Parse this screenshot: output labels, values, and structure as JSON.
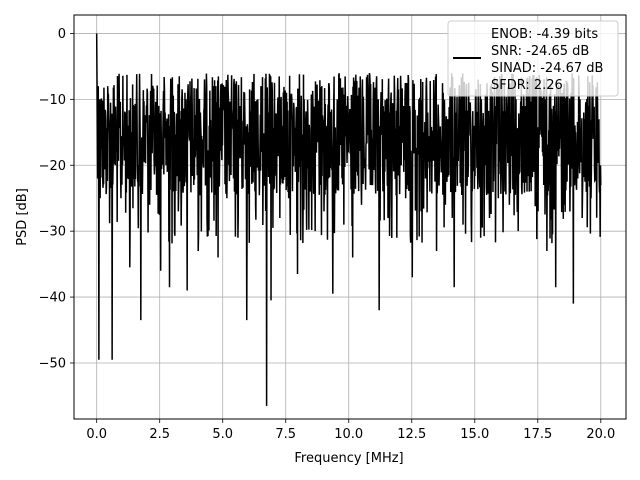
{
  "chart_data": {
    "type": "line",
    "xlabel": "Frequency [MHz]",
    "ylabel": "PSD [dB]",
    "xlim": [
      -0.9,
      21.0
    ],
    "ylim": [
      -58.5,
      2.8
    ],
    "xticks": [
      0.0,
      2.5,
      5.0,
      7.5,
      10.0,
      12.5,
      15.0,
      17.5,
      20.0
    ],
    "xtick_labels": [
      "0.0",
      "2.5",
      "5.0",
      "7.5",
      "10.0",
      "12.5",
      "15.0",
      "17.5",
      "20.0"
    ],
    "yticks": [
      0,
      -10,
      -20,
      -30,
      -40,
      -50
    ],
    "ytick_labels": [
      "0",
      "−10",
      "−20",
      "−30",
      "−40",
      "−50"
    ],
    "grid": true,
    "legend_position": "top-right",
    "series": [
      {
        "color": "#000000",
        "x_start": 0.0,
        "x_end": 20.0,
        "description_points": 1600,
        "values": [
          0,
          -7,
          -15,
          -22,
          -12,
          -8,
          -20,
          -49.5,
          -14,
          -18,
          -10,
          -25,
          -16,
          -12,
          -22,
          -35.5,
          -15,
          -11,
          -20,
          -43.5,
          -13,
          -17,
          -9,
          -26,
          -14,
          -19,
          -11,
          -24,
          -36,
          -15,
          -12,
          -21,
          -38.5,
          -10,
          -18,
          -14,
          -27,
          -13,
          -20,
          -9,
          -39,
          -16,
          -11,
          -23,
          -15,
          -33,
          -12,
          -19,
          -10,
          -28,
          -14,
          -21,
          -8,
          -34,
          -13,
          -17,
          -10,
          -25,
          -16,
          -12,
          -22,
          -14,
          -31,
          -11,
          -18,
          -9,
          -43.5,
          -15,
          -20,
          -12,
          -26,
          -10,
          -17,
          -14,
          -23,
          -56.5,
          -12,
          -40.5,
          -15,
          -19,
          -11,
          -28,
          -14,
          -18,
          -9,
          -25,
          -13,
          -21,
          -36.5,
          -12,
          -16,
          -10,
          -24,
          -15,
          -19,
          -11,
          -30,
          -13,
          -17,
          -8,
          -27,
          -14,
          -22,
          -12,
          -39.5,
          -16,
          -10,
          -20,
          -13,
          -29,
          -11,
          -18,
          -15,
          -34,
          -12,
          -21,
          -9,
          -26,
          -14,
          -17,
          -11,
          -23,
          -16,
          -13,
          -42,
          -10,
          -19,
          -15,
          -28,
          -12,
          -18,
          -9,
          -31,
          -14,
          -20,
          -11,
          -25,
          -16,
          -12,
          -37,
          -13,
          -19,
          -10,
          -27,
          -15,
          -22,
          -12,
          -24,
          -17,
          -11,
          -33,
          -14,
          -18,
          -9,
          -26,
          -13,
          -21,
          -38.5,
          -12,
          -16,
          -10,
          -29,
          -15,
          -19,
          -11,
          -23,
          -14,
          -17,
          -12,
          -31,
          -16,
          -20,
          -10,
          -28,
          -13,
          -18,
          -11,
          -25,
          -15,
          -22,
          -24,
          -12,
          -26,
          -14,
          -19,
          -10,
          -30,
          -13,
          -17,
          -11,
          -24,
          -16,
          -21,
          -12,
          -27,
          -14,
          -18,
          -10,
          -33,
          -15,
          -20,
          -11,
          -38.5,
          -13,
          -16,
          -12,
          -26,
          -14,
          -19,
          -9,
          -41,
          -15,
          -22,
          -10,
          -28,
          -13,
          -18,
          -11,
          -25,
          -16,
          -20,
          -12,
          -23
        ]
      }
    ],
    "legend": {
      "entries": [
        "ENOB: -4.39 bits",
        "SNR: -24.65 dB",
        "SINAD: -24.67 dB",
        "SFDR: 2.26"
      ]
    }
  }
}
